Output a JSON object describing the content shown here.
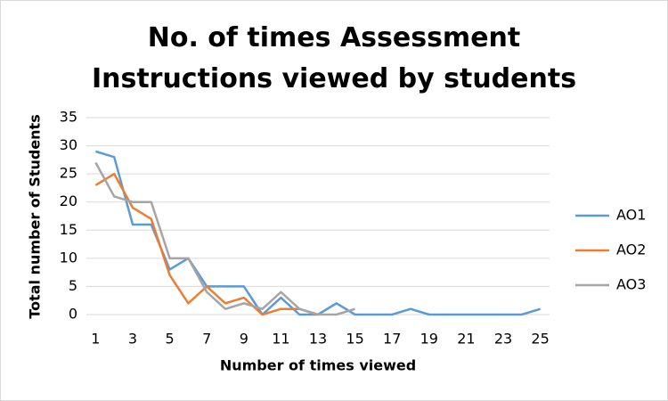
{
  "chart_data": {
    "type": "line",
    "title": "No. of times Assessment Instructions viewed by students",
    "x_label": "Number of times viewed",
    "y_label": "Total number of Students",
    "categories": [
      "1",
      null,
      "3",
      null,
      "5",
      null,
      "7",
      null,
      "9",
      null,
      "11",
      null,
      "13",
      null,
      "15",
      null,
      "17",
      null,
      "19",
      null,
      "21",
      null,
      "23",
      null,
      "25"
    ],
    "series": [
      {
        "name": "AO1",
        "color": "#5b9bd5",
        "values": [
          29,
          28,
          16,
          16,
          8,
          10,
          5,
          5,
          5,
          0,
          3,
          0,
          0,
          2,
          0,
          0,
          0,
          1,
          0,
          0,
          0,
          0,
          0,
          0,
          1
        ]
      },
      {
        "name": "AO2",
        "color": "#ed7d31",
        "values": [
          23,
          25,
          19,
          17,
          7,
          2,
          5,
          2,
          3,
          0,
          1,
          1,
          0,
          null,
          null,
          null,
          null,
          null,
          null,
          null,
          null,
          null,
          null,
          null,
          null
        ]
      },
      {
        "name": "AO3",
        "color": "#a5a5a5",
        "values": [
          27,
          21,
          20,
          20,
          10,
          10,
          4,
          1,
          2,
          1,
          4,
          1,
          0,
          0,
          1,
          null,
          null,
          null,
          null,
          null,
          null,
          null,
          null,
          null,
          null
        ]
      }
    ],
    "ylim": [
      0,
      35
    ],
    "yticks": [
      0,
      5,
      10,
      15,
      20,
      25,
      30,
      35
    ],
    "grid": true,
    "legend": "right"
  }
}
